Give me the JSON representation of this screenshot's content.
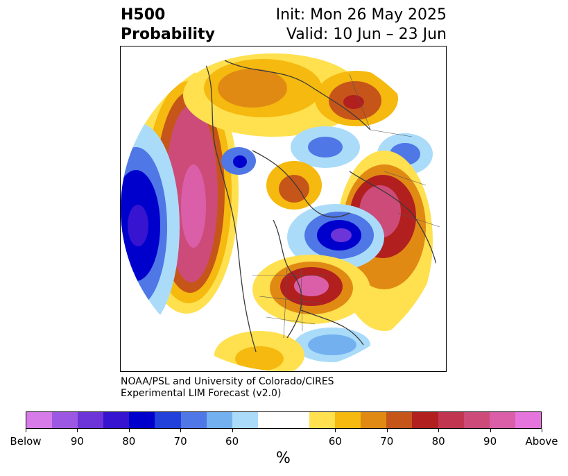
{
  "title": {
    "left_line1": "H500",
    "left_line2": "Probability",
    "right_line1": "Init: Mon 26 May 2025",
    "right_line2": "Valid: 10 Jun – 23 Jun"
  },
  "credit": {
    "line1": "NOAA/PSL and University of Colorado/CIRES",
    "line2": "Experimental LIM Forecast (v2.0)"
  },
  "colorbar": {
    "colors": [
      "#d77be9",
      "#9d58e3",
      "#6d35d7",
      "#3614d0",
      "#0000cd",
      "#2240da",
      "#4f77e6",
      "#72b0f0",
      "#aadcfa",
      "#ffffff",
      "#ffffff",
      "#ffe04f",
      "#f5b90f",
      "#e08a14",
      "#c65519",
      "#b1201f",
      "#c13550",
      "#cc4b79",
      "#da5fa8",
      "#e574dc"
    ],
    "tick_labels": [
      "Below",
      "90",
      "80",
      "70",
      "60",
      "60",
      "70",
      "80",
      "90",
      "Above"
    ],
    "units": "%"
  }
}
